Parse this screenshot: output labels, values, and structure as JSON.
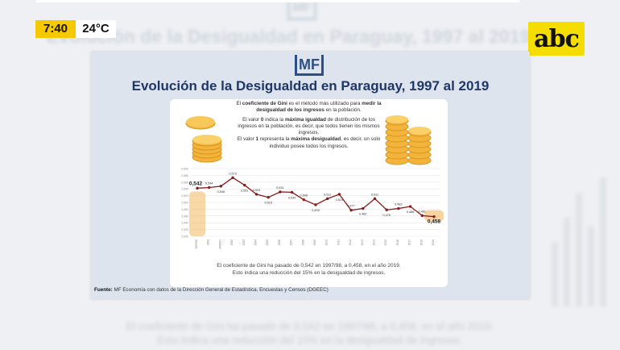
{
  "overlay": {
    "time": "7:40",
    "temperature": "24°C",
    "channel_logo": "abc"
  },
  "background": {
    "logo": "MF",
    "title": "Evolución de la Desigualdad en Paraguay, 1997 al 2019",
    "caption_line1": "El coeficiente de Gini ha pasado de 0,542 en 1997/98, a 0,458, en el año 2019.",
    "caption_line2": "Esto indica una reducción del 15% en la desigualdad de ingresos."
  },
  "slide": {
    "logo": "MF",
    "title": "Evolución de la Desigualdad en Paraguay, 1997 al 2019",
    "intro_1_pre": "El ",
    "intro_1_bold": "coeficiente de Gini",
    "intro_1_mid": " es el método más utilizado para ",
    "intro_1_bold2": "medir la desigualdad de los ingresos",
    "intro_1_post": " en la población.",
    "intro_2_pre": "El valor ",
    "intro_2_bold": "0",
    "intro_2_mid": " indica la ",
    "intro_2_bold2": "máxima igualdad",
    "intro_2_post": " de distribución de los ingresos en la población, es decir, que todos tienen los mismos ingresos.",
    "intro_3_pre": "El valor ",
    "intro_3_bold": "1",
    "intro_3_mid": " representa la ",
    "intro_3_bold2": "máxima desigualdad",
    "intro_3_post": ", es decir, un solo individuo posee todos los ingresos.",
    "note_line1": "El coeficiente de Gini ha pasado de 0,542 en 1997/98, a 0,458, en el año 2019.",
    "note_line2": "Esto indica una reducción del 15% en la desigualdad de ingresos.",
    "source_label": "Fuente:",
    "source_text": " MF Economía con datos de la Dirección General de Estadística, Encuestas y Censos (DGEEC)"
  },
  "chart_data": {
    "type": "line",
    "x": [
      "1997/98",
      "1999",
      "2000/01",
      "2002",
      "2003",
      "2004",
      "2005",
      "2006",
      "2007",
      "2008",
      "2009",
      "2010",
      "2011",
      "2012",
      "2013",
      "2014",
      "2015",
      "2016",
      "2017",
      "2018",
      "2019"
    ],
    "values": [
      0.542,
      0.544,
      0.548,
      0.573,
      0.551,
      0.524,
      0.515,
      0.531,
      0.53,
      0.508,
      0.493,
      0.511,
      0.524,
      0.477,
      0.482,
      0.511,
      0.478,
      0.482,
      0.488,
      0.461,
      0.458
    ],
    "labels": [
      "0,542",
      "0,544",
      "0,548",
      "0,573",
      "0,551",
      "0,524",
      "0,515",
      "0,531",
      "0,530",
      "0,508",
      "0,493",
      "0,511",
      "0,524",
      "0,477",
      "0,482",
      "0,511",
      "0,478",
      "0,482",
      "0,488",
      "0,461",
      "0,458"
    ],
    "yticks": [
      "0,600",
      "0,580",
      "0,560",
      "0,540",
      "0,520",
      "0,500",
      "0,480",
      "0,460",
      "0,440",
      "0,420",
      "0,400"
    ],
    "ylim": [
      0.4,
      0.6
    ],
    "line_color": "#8b1a1a",
    "highlight_color": "#f4b860",
    "grid": true
  }
}
